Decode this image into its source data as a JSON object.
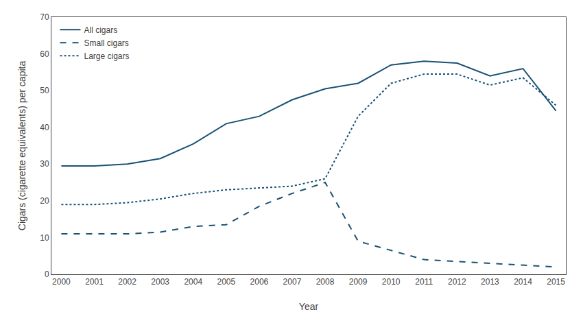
{
  "chart_data": {
    "type": "line",
    "xlabel": "Year",
    "ylabel": "Cigars (cigarette equivalents) per capita",
    "x": [
      2000,
      2001,
      2002,
      2003,
      2004,
      2005,
      2006,
      2007,
      2008,
      2009,
      2010,
      2011,
      2012,
      2013,
      2014,
      2015
    ],
    "series": [
      {
        "name": "All cigars",
        "color": "#1a5276",
        "line_style": "solid",
        "values": [
          29.5,
          29.5,
          30.0,
          31.5,
          35.5,
          41.0,
          43.0,
          47.5,
          50.5,
          52.0,
          57.0,
          58.0,
          57.5,
          54.0,
          56.0,
          44.5
        ]
      },
      {
        "name": "Small cigars",
        "color": "#1a5276",
        "line_style": "dashed",
        "values": [
          11.0,
          11.0,
          11.0,
          11.5,
          13.0,
          13.5,
          18.5,
          22.0,
          25.0,
          9.0,
          6.5,
          4.0,
          3.5,
          3.0,
          2.5,
          2.0
        ]
      },
      {
        "name": "Large cigars",
        "color": "#1a5276",
        "line_style": "dotted",
        "values": [
          19.0,
          19.0,
          19.5,
          20.5,
          22.0,
          23.0,
          23.5,
          24.0,
          26.0,
          43.0,
          52.0,
          54.5,
          54.5,
          51.5,
          53.5,
          46.0
        ]
      }
    ],
    "xlim": [
      1999.7,
      2015.3
    ],
    "xticks": [
      2000,
      2001,
      2002,
      2003,
      2004,
      2005,
      2006,
      2007,
      2008,
      2009,
      2010,
      2011,
      2012,
      2013,
      2014,
      2015
    ],
    "ylim": [
      0,
      70
    ],
    "yticks": [
      0,
      10,
      20,
      30,
      40,
      50,
      60,
      70
    ],
    "grid": false,
    "legend": "upper left"
  }
}
